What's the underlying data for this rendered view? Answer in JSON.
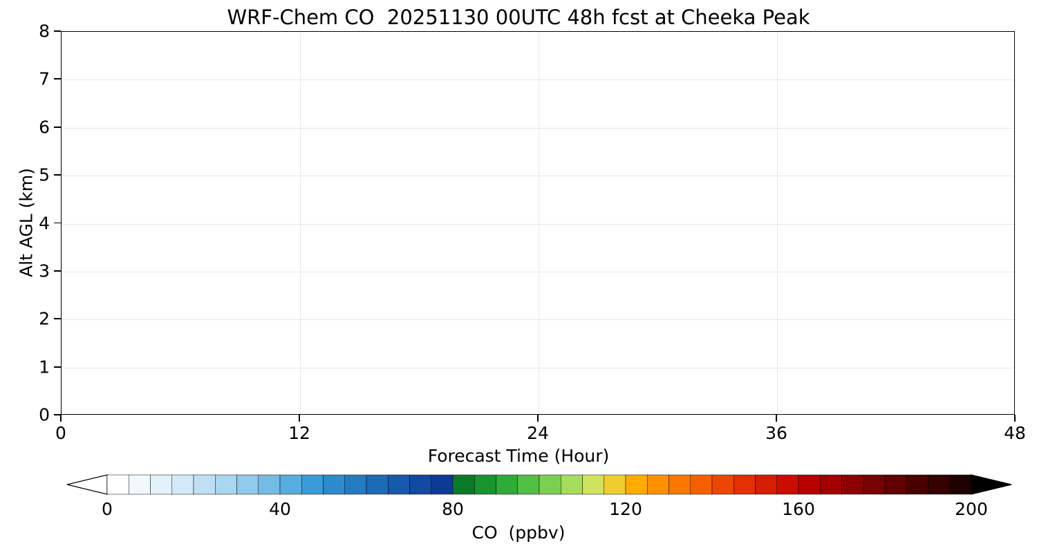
{
  "chart_data": {
    "type": "heatmap",
    "title": "WRF-Chem CO  20251130 00UTC 48h fcst at Cheeka Peak",
    "xlabel": "Forecast Time (Hour)",
    "ylabel": "Alt AGL (km)",
    "xlim": [
      0,
      48
    ],
    "ylim": [
      0,
      8
    ],
    "x_ticks": [
      0,
      12,
      24,
      36,
      48
    ],
    "y_ticks": [
      0,
      1,
      2,
      3,
      4,
      5,
      6,
      7,
      8
    ],
    "grid": true,
    "values": [],
    "colorbar": {
      "label": "CO  (ppbv)",
      "ticks": [
        0,
        40,
        80,
        120,
        160,
        200
      ],
      "range": [
        0,
        200
      ],
      "extend": "both",
      "under_color": "#ffffff",
      "over_color": "#000000",
      "colors": [
        "#ffffff",
        "#f2f9fd",
        "#e3f1fa",
        "#d2e9f7",
        "#bfe0f4",
        "#a9d6f0",
        "#90caec",
        "#74bce6",
        "#57ace0",
        "#3a9bd8",
        "#2c8bcd",
        "#247bc2",
        "#1d6ab7",
        "#1759ac",
        "#1249a1",
        "#0e3a97",
        "#0a7a28",
        "#18942f",
        "#2dac38",
        "#52c044",
        "#7bd052",
        "#a5dc5c",
        "#cfe35f",
        "#f0cc2e",
        "#ffab00",
        "#ff9100",
        "#fb7800",
        "#f55f00",
        "#ec4600",
        "#e23000",
        "#d61d00",
        "#ca0d00",
        "#b80000",
        "#a30000",
        "#8d0000",
        "#770000",
        "#610000",
        "#4b0000",
        "#360000",
        "#200000"
      ]
    }
  }
}
